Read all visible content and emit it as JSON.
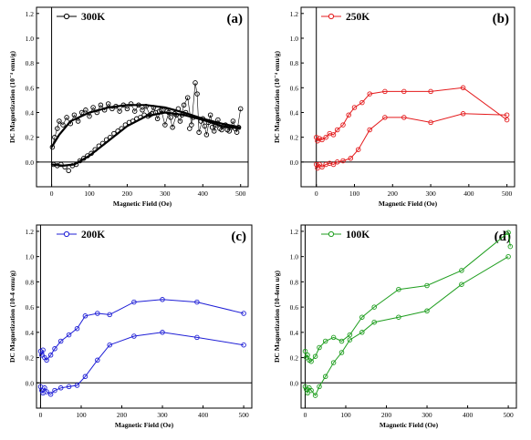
{
  "chart_data": [
    {
      "type": "line",
      "panel_label": "(a)",
      "legend_label": "300K",
      "color": "#000000",
      "xlabel": "Magnetic Field (Oe)",
      "ylabel": "DC Magnetization (10⁻⁴ emu/g)",
      "xlim": [
        -40,
        520
      ],
      "ylim": [
        -0.2,
        1.25
      ],
      "xticks": [
        0,
        100,
        200,
        300,
        400,
        500
      ],
      "yticks": [
        0.0,
        0.2,
        0.4,
        0.6,
        0.8,
        1.0,
        1.2
      ],
      "legend_position": "top-left",
      "grid": false,
      "series": [
        {
          "style": "scatter",
          "points": [
            [
              2,
              0.12
            ],
            [
              8,
              0.2
            ],
            [
              15,
              0.27
            ],
            [
              20,
              0.33
            ],
            [
              30,
              0.3
            ],
            [
              40,
              0.36
            ],
            [
              50,
              0.31
            ],
            [
              60,
              0.38
            ],
            [
              70,
              0.33
            ],
            [
              80,
              0.4
            ],
            [
              90,
              0.42
            ],
            [
              100,
              0.37
            ],
            [
              110,
              0.44
            ],
            [
              120,
              0.4
            ],
            [
              130,
              0.46
            ],
            [
              140,
              0.42
            ],
            [
              150,
              0.47
            ],
            [
              160,
              0.43
            ],
            [
              170,
              0.45
            ],
            [
              180,
              0.41
            ],
            [
              190,
              0.46
            ],
            [
              200,
              0.43
            ],
            [
              210,
              0.47
            ],
            [
              220,
              0.41
            ],
            [
              230,
              0.46
            ],
            [
              240,
              0.42
            ],
            [
              250,
              0.45
            ],
            [
              260,
              0.38
            ],
            [
              270,
              0.44
            ],
            [
              280,
              0.35
            ],
            [
              290,
              0.42
            ],
            [
              300,
              0.3
            ],
            [
              310,
              0.4
            ],
            [
              320,
              0.28
            ],
            [
              330,
              0.38
            ],
            [
              340,
              0.33
            ],
            [
              350,
              0.46
            ],
            [
              360,
              0.52
            ],
            [
              370,
              0.3
            ],
            [
              380,
              0.64
            ],
            [
              385,
              0.55
            ],
            [
              390,
              0.24
            ],
            [
              400,
              0.35
            ],
            [
              410,
              0.22
            ],
            [
              420,
              0.38
            ],
            [
              430,
              0.25
            ],
            [
              440,
              0.34
            ],
            [
              450,
              0.26
            ],
            [
              460,
              0.3
            ],
            [
              470,
              0.25
            ],
            [
              480,
              0.33
            ],
            [
              490,
              0.24
            ],
            [
              500,
              0.43
            ],
            [
              5,
              -0.02
            ],
            [
              15,
              -0.03
            ],
            [
              25,
              -0.02
            ],
            [
              35,
              -0.04
            ],
            [
              45,
              -0.07
            ],
            [
              55,
              -0.03
            ],
            [
              65,
              -0.02
            ],
            [
              75,
              0.01
            ],
            [
              85,
              0.03
            ],
            [
              95,
              0.05
            ],
            [
              105,
              0.07
            ],
            [
              115,
              0.1
            ],
            [
              125,
              0.13
            ],
            [
              135,
              0.15
            ],
            [
              145,
              0.18
            ],
            [
              155,
              0.2
            ],
            [
              165,
              0.23
            ],
            [
              175,
              0.25
            ],
            [
              185,
              0.27
            ],
            [
              195,
              0.3
            ],
            [
              205,
              0.32
            ],
            [
              215,
              0.33
            ],
            [
              225,
              0.35
            ],
            [
              235,
              0.36
            ],
            [
              245,
              0.38
            ],
            [
              255,
              0.37
            ],
            [
              265,
              0.39
            ],
            [
              275,
              0.4
            ],
            [
              285,
              0.41
            ],
            [
              295,
              0.42
            ],
            [
              305,
              0.41
            ],
            [
              315,
              0.36
            ],
            [
              325,
              0.39
            ],
            [
              335,
              0.43
            ],
            [
              345,
              0.38
            ],
            [
              355,
              0.4
            ],
            [
              365,
              0.27
            ],
            [
              375,
              0.36
            ],
            [
              395,
              0.33
            ],
            [
              405,
              0.29
            ],
            [
              415,
              0.32
            ],
            [
              425,
              0.28
            ],
            [
              435,
              0.3
            ],
            [
              445,
              0.27
            ],
            [
              455,
              0.29
            ],
            [
              465,
              0.26
            ],
            [
              475,
              0.28
            ],
            [
              485,
              0.27
            ],
            [
              495,
              0.28
            ]
          ]
        },
        {
          "style": "line",
          "points": [
            [
              0,
              0.12
            ],
            [
              20,
              0.22
            ],
            [
              50,
              0.33
            ],
            [
              100,
              0.4
            ],
            [
              150,
              0.44
            ],
            [
              200,
              0.46
            ],
            [
              250,
              0.46
            ],
            [
              300,
              0.44
            ],
            [
              350,
              0.4
            ],
            [
              400,
              0.35
            ],
            [
              450,
              0.31
            ],
            [
              500,
              0.28
            ]
          ]
        },
        {
          "style": "line",
          "points": [
            [
              0,
              -0.02
            ],
            [
              30,
              -0.03
            ],
            [
              60,
              -0.02
            ],
            [
              100,
              0.05
            ],
            [
              150,
              0.17
            ],
            [
              200,
              0.29
            ],
            [
              250,
              0.37
            ],
            [
              300,
              0.4
            ],
            [
              350,
              0.38
            ],
            [
              400,
              0.34
            ],
            [
              450,
              0.29
            ],
            [
              500,
              0.27
            ]
          ]
        }
      ]
    },
    {
      "type": "line",
      "panel_label": "(b)",
      "legend_label": "250K",
      "color": "#e41a1c",
      "xlabel": "Magnetic Field (Oe)",
      "ylabel": "DC Magnetization (10⁻⁴ emu/g)",
      "xlim": [
        -40,
        520
      ],
      "ylim": [
        -0.2,
        1.25
      ],
      "xticks": [
        0,
        100,
        200,
        300,
        400,
        500
      ],
      "yticks": [
        0.0,
        0.2,
        0.4,
        0.6,
        0.8,
        1.0,
        1.2
      ],
      "legend_position": "top-left",
      "grid": false,
      "series": [
        {
          "style": "line-markers",
          "points": [
            [
              0,
              0.2
            ],
            [
              3,
              0.17
            ],
            [
              8,
              0.19
            ],
            [
              15,
              0.18
            ],
            [
              25,
              0.2
            ],
            [
              35,
              0.23
            ],
            [
              45,
              0.22
            ],
            [
              55,
              0.26
            ],
            [
              70,
              0.3
            ],
            [
              85,
              0.38
            ],
            [
              100,
              0.44
            ],
            [
              120,
              0.48
            ],
            [
              140,
              0.55
            ],
            [
              180,
              0.57
            ],
            [
              230,
              0.57
            ],
            [
              300,
              0.57
            ],
            [
              385,
              0.6
            ],
            [
              500,
              0.34
            ]
          ]
        },
        {
          "style": "line-markers",
          "points": [
            [
              0,
              -0.02
            ],
            [
              3,
              -0.05
            ],
            [
              8,
              -0.02
            ],
            [
              15,
              -0.04
            ],
            [
              25,
              -0.02
            ],
            [
              35,
              -0.01
            ],
            [
              45,
              -0.02
            ],
            [
              55,
              0.0
            ],
            [
              70,
              0.01
            ],
            [
              90,
              0.03
            ],
            [
              110,
              0.1
            ],
            [
              140,
              0.26
            ],
            [
              180,
              0.36
            ],
            [
              230,
              0.36
            ],
            [
              300,
              0.32
            ],
            [
              385,
              0.39
            ],
            [
              500,
              0.38
            ]
          ]
        }
      ]
    },
    {
      "type": "line",
      "panel_label": "(c)",
      "legend_label": "200K",
      "color": "#1f1fd6",
      "xlabel": "Magnetic Field (Oe)",
      "ylabel": "DC Magnetization (10-4 emu/g)",
      "xlim": [
        -10,
        520
      ],
      "ylim": [
        -0.2,
        1.25
      ],
      "xticks": [
        0,
        100,
        200,
        300,
        400,
        500
      ],
      "yticks": [
        0.0,
        0.2,
        0.4,
        0.6,
        0.8,
        1.0,
        1.2
      ],
      "legend_position": "top-left",
      "grid": false,
      "series": [
        {
          "style": "line-markers",
          "points": [
            [
              0,
              0.25
            ],
            [
              3,
              0.22
            ],
            [
              6,
              0.26
            ],
            [
              10,
              0.2
            ],
            [
              15,
              0.18
            ],
            [
              25,
              0.22
            ],
            [
              35,
              0.27
            ],
            [
              50,
              0.33
            ],
            [
              70,
              0.38
            ],
            [
              90,
              0.43
            ],
            [
              110,
              0.53
            ],
            [
              140,
              0.55
            ],
            [
              170,
              0.54
            ],
            [
              230,
              0.64
            ],
            [
              300,
              0.66
            ],
            [
              385,
              0.64
            ],
            [
              500,
              0.55
            ]
          ]
        },
        {
          "style": "line-markers",
          "points": [
            [
              0,
              -0.03
            ],
            [
              3,
              -0.06
            ],
            [
              6,
              -0.08
            ],
            [
              10,
              -0.04
            ],
            [
              15,
              -0.07
            ],
            [
              25,
              -0.09
            ],
            [
              35,
              -0.06
            ],
            [
              50,
              -0.04
            ],
            [
              70,
              -0.03
            ],
            [
              90,
              -0.02
            ],
            [
              110,
              0.05
            ],
            [
              140,
              0.18
            ],
            [
              170,
              0.3
            ],
            [
              230,
              0.37
            ],
            [
              300,
              0.4
            ],
            [
              385,
              0.36
            ],
            [
              500,
              0.3
            ]
          ]
        }
      ]
    },
    {
      "type": "line",
      "panel_label": "(d)",
      "legend_label": "100K",
      "color": "#1f9e1f",
      "xlabel": "Magnetic Field (Oe)",
      "ylabel": "DC Magnetization (10-4em u/g)",
      "xlim": [
        -10,
        520
      ],
      "ylim": [
        -0.2,
        1.25
      ],
      "xticks": [
        0,
        100,
        200,
        300,
        400,
        500
      ],
      "yticks": [
        0.0,
        0.2,
        0.4,
        0.6,
        0.8,
        1.0,
        1.2
      ],
      "legend_position": "top-left",
      "grid": false,
      "series": [
        {
          "style": "line-markers",
          "points": [
            [
              0,
              0.25
            ],
            [
              3,
              0.2
            ],
            [
              6,
              0.22
            ],
            [
              10,
              0.18
            ],
            [
              15,
              0.17
            ],
            [
              25,
              0.21
            ],
            [
              35,
              0.28
            ],
            [
              50,
              0.33
            ],
            [
              70,
              0.36
            ],
            [
              90,
              0.33
            ],
            [
              110,
              0.38
            ],
            [
              140,
              0.52
            ],
            [
              170,
              0.6
            ],
            [
              230,
              0.74
            ],
            [
              300,
              0.77
            ],
            [
              385,
              0.89
            ],
            [
              500,
              1.19
            ],
            [
              505,
              1.08
            ]
          ]
        },
        {
          "style": "line-markers",
          "points": [
            [
              0,
              -0.03
            ],
            [
              3,
              -0.05
            ],
            [
              6,
              -0.08
            ],
            [
              10,
              -0.04
            ],
            [
              15,
              -0.06
            ],
            [
              25,
              -0.1
            ],
            [
              35,
              -0.03
            ],
            [
              50,
              0.05
            ],
            [
              70,
              0.16
            ],
            [
              90,
              0.24
            ],
            [
              110,
              0.34
            ],
            [
              140,
              0.4
            ],
            [
              170,
              0.48
            ],
            [
              230,
              0.52
            ],
            [
              300,
              0.57
            ],
            [
              385,
              0.78
            ],
            [
              500,
              1.0
            ]
          ]
        }
      ]
    }
  ]
}
